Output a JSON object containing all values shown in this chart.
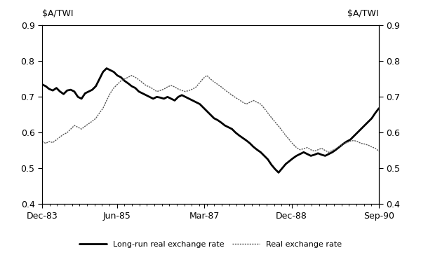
{
  "ylabel_left": "$A/TWI",
  "ylabel_right": "$A/TWI",
  "ylim": [
    0.4,
    0.9
  ],
  "yticks": [
    0.4,
    0.5,
    0.6,
    0.7,
    0.8,
    0.9
  ],
  "xtick_labels": [
    "Dec-83",
    "Jun-85",
    "Mar-87",
    "Dec-88",
    "Sep-90"
  ],
  "tick_months": [
    0,
    18,
    39,
    60,
    81
  ],
  "total_months": 81,
  "legend_labels": [
    "Long-run real exchange rate",
    "Real exchange rate"
  ],
  "background_color": "#ffffff",
  "line_color_long_run": "#000000",
  "line_color_real": "#555555",
  "long_run_lw": 2.0,
  "real_lw": 1.0,
  "long_run": [
    0.735,
    0.73,
    0.722,
    0.718,
    0.725,
    0.715,
    0.708,
    0.718,
    0.72,
    0.715,
    0.7,
    0.695,
    0.71,
    0.715,
    0.72,
    0.73,
    0.75,
    0.77,
    0.78,
    0.775,
    0.77,
    0.76,
    0.755,
    0.745,
    0.738,
    0.73,
    0.725,
    0.715,
    0.71,
    0.705,
    0.7,
    0.695,
    0.7,
    0.698,
    0.695,
    0.7,
    0.695,
    0.69,
    0.7,
    0.705,
    0.7,
    0.695,
    0.69,
    0.685,
    0.68,
    0.67,
    0.66,
    0.65,
    0.64,
    0.635,
    0.628,
    0.62,
    0.615,
    0.61,
    0.6,
    0.592,
    0.585,
    0.578,
    0.57,
    0.56,
    0.552,
    0.545,
    0.535,
    0.525,
    0.51,
    0.498,
    0.488,
    0.5,
    0.512,
    0.52,
    0.528,
    0.535,
    0.54,
    0.545,
    0.54,
    0.535,
    0.538,
    0.542,
    0.538,
    0.535,
    0.54,
    0.545,
    0.552,
    0.56,
    0.568,
    0.575,
    0.58,
    0.59,
    0.6,
    0.61,
    0.62,
    0.63,
    0.64,
    0.655,
    0.668
  ],
  "real": [
    0.575,
    0.57,
    0.575,
    0.572,
    0.58,
    0.588,
    0.595,
    0.6,
    0.61,
    0.62,
    0.615,
    0.61,
    0.618,
    0.625,
    0.632,
    0.64,
    0.655,
    0.668,
    0.69,
    0.71,
    0.725,
    0.735,
    0.745,
    0.75,
    0.755,
    0.76,
    0.755,
    0.748,
    0.74,
    0.732,
    0.728,
    0.722,
    0.715,
    0.718,
    0.722,
    0.728,
    0.732,
    0.728,
    0.722,
    0.718,
    0.715,
    0.718,
    0.722,
    0.728,
    0.74,
    0.752,
    0.76,
    0.75,
    0.742,
    0.735,
    0.728,
    0.72,
    0.712,
    0.705,
    0.698,
    0.692,
    0.685,
    0.68,
    0.685,
    0.69,
    0.685,
    0.68,
    0.668,
    0.655,
    0.642,
    0.63,
    0.618,
    0.605,
    0.592,
    0.58,
    0.568,
    0.558,
    0.552,
    0.555,
    0.558,
    0.552,
    0.548,
    0.552,
    0.556,
    0.55,
    0.545,
    0.55,
    0.555,
    0.562,
    0.568,
    0.572,
    0.576,
    0.578,
    0.575,
    0.57,
    0.568,
    0.565,
    0.56,
    0.556,
    0.548
  ]
}
